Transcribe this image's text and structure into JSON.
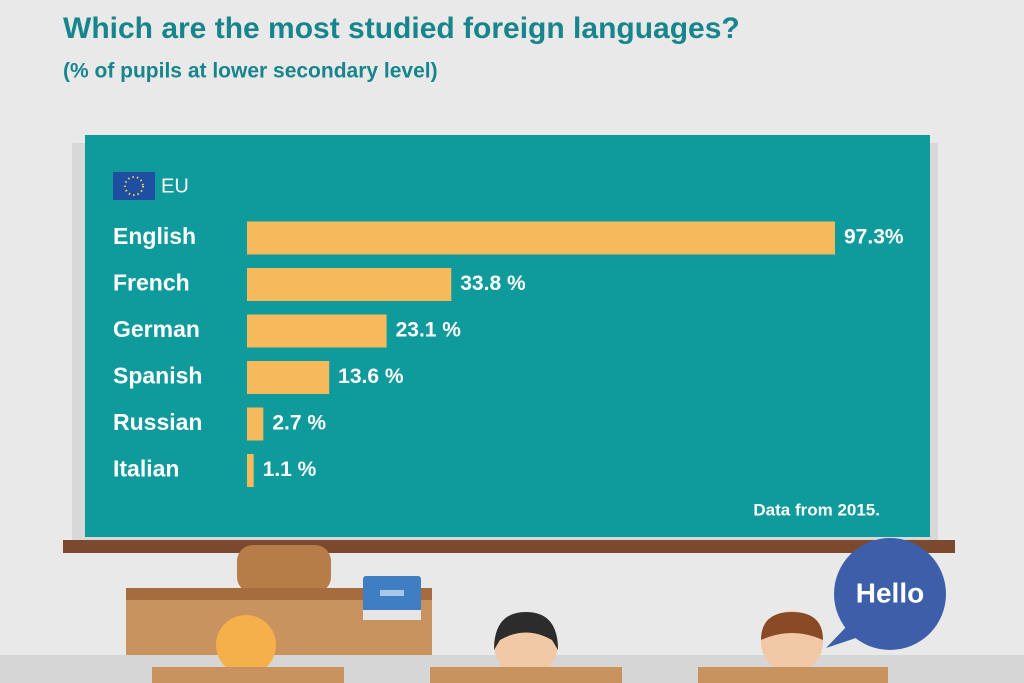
{
  "chart_data": {
    "type": "bar",
    "orientation": "horizontal",
    "title": "Which are the most studied foreign languages?",
    "subtitle": "(% of pupils at lower secondary level)",
    "legend": "EU",
    "categories": [
      "English",
      "French",
      "German",
      "Spanish",
      "Russian",
      "Italian"
    ],
    "values": [
      97.3,
      33.8,
      23.1,
      13.6,
      2.7,
      1.1
    ],
    "value_labels": [
      "97.3%",
      "33.8 %",
      "23.1 %",
      "13.6 %",
      "2.7 %",
      "1.1 %"
    ],
    "color": "#f6b95c",
    "note": "Data from 2015.",
    "bubble": "Hello"
  }
}
